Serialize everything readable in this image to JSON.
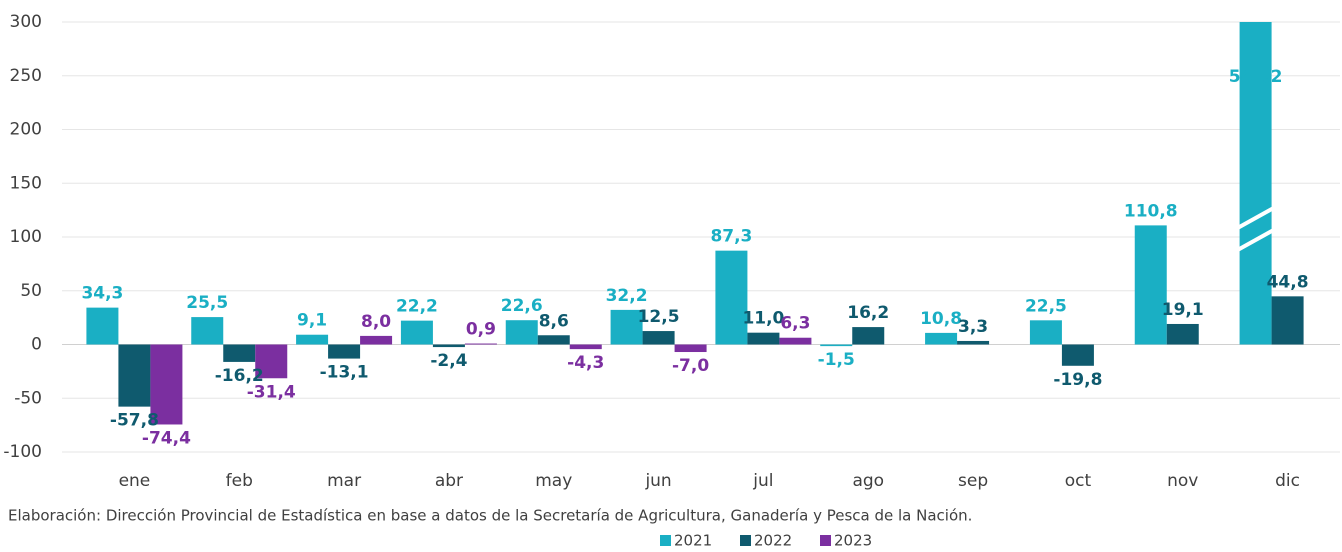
{
  "chart_data": {
    "type": "bar",
    "categories": [
      "ene",
      "feb",
      "mar",
      "abr",
      "may",
      "jun",
      "jul",
      "ago",
      "sep",
      "oct",
      "nov",
      "dic"
    ],
    "series": [
      {
        "name": "2021",
        "color": "#1aafc4",
        "values": [
          34.3,
          25.5,
          9.1,
          22.2,
          22.6,
          32.2,
          87.3,
          -1.5,
          10.8,
          22.5,
          110.8,
          541.2
        ],
        "value_labels": [
          "34,3",
          "25,5",
          "9,1",
          "22,2",
          "22,6",
          "32,2",
          "87,3",
          "-1,5",
          "10,8",
          "22,5",
          "110,8",
          "541,2"
        ]
      },
      {
        "name": "2022",
        "color": "#0f5a6e",
        "values": [
          -57.8,
          -16.2,
          -13.1,
          -2.4,
          8.6,
          12.5,
          11.0,
          16.2,
          3.3,
          -19.8,
          19.1,
          44.8
        ],
        "value_labels": [
          "-57,8",
          "-16,2",
          "-13,1",
          "-2,4",
          "8,6",
          "12,5",
          "11,0",
          "16,2",
          "3,3",
          "-19,8",
          "19,1",
          "44,8"
        ]
      },
      {
        "name": "2023",
        "color": "#7b2fa0",
        "values": [
          -74.4,
          -31.4,
          8.0,
          0.9,
          -4.3,
          -7.0,
          6.3,
          null,
          null,
          null,
          null,
          null
        ],
        "value_labels": [
          "-74,4",
          "-31,4",
          "8,0",
          "0,9",
          "-4,3",
          "-7,0",
          "6,3",
          null,
          null,
          null,
          null,
          null
        ]
      }
    ],
    "ylim": [
      -100,
      300
    ],
    "yticks": [
      -100,
      -50,
      0,
      50,
      100,
      150,
      200,
      250,
      300
    ],
    "grid": true,
    "source": "Elaboración: Dirección Provincial de Estadística en base a datos de la Secretaría de Agricultura, Ganadería y Pesca de la Nación.",
    "legend": "bottom"
  }
}
